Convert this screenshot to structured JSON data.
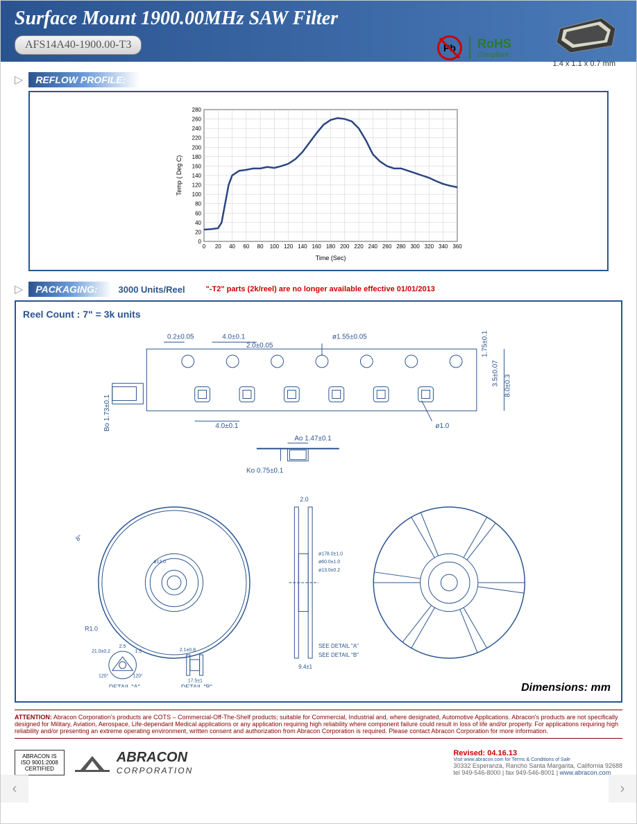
{
  "header": {
    "title": "Surface Mount 1900.00MHz  SAW Filter",
    "part_number": "AFS14A40-1900.00-T3",
    "dimensions": "1.4 x 1.1 x 0.7 mm"
  },
  "compliance": {
    "pb_label": "Pb",
    "rohs_title": "RoHS",
    "rohs_sub": "Compliant"
  },
  "reflow": {
    "section_title": "REFLOW PROFILE:",
    "chart": {
      "type": "line",
      "xlabel": "Time (Sec)",
      "ylabel": "Temp ( Deg C)",
      "xlim": [
        0,
        360
      ],
      "ylim": [
        0,
        280
      ],
      "xtick_step": 20,
      "ytick_step": 20,
      "xticks": [
        0,
        20,
        40,
        60,
        80,
        100,
        120,
        140,
        160,
        180,
        200,
        220,
        240,
        260,
        280,
        300,
        320,
        340,
        360
      ],
      "yticks": [
        0,
        20,
        40,
        60,
        80,
        100,
        120,
        140,
        160,
        180,
        200,
        220,
        240,
        260,
        280
      ],
      "line_color": "#2a4580",
      "line_width": 2.5,
      "grid_color": "#cccccc",
      "background_color": "#ffffff",
      "border_color": "#000000",
      "label_fontsize": 9,
      "tick_fontsize": 8,
      "data": [
        [
          0,
          25
        ],
        [
          10,
          26
        ],
        [
          20,
          28
        ],
        [
          25,
          40
        ],
        [
          30,
          80
        ],
        [
          35,
          120
        ],
        [
          40,
          140
        ],
        [
          50,
          150
        ],
        [
          60,
          152
        ],
        [
          70,
          155
        ],
        [
          80,
          155
        ],
        [
          90,
          158
        ],
        [
          100,
          156
        ],
        [
          110,
          160
        ],
        [
          120,
          165
        ],
        [
          130,
          175
        ],
        [
          140,
          190
        ],
        [
          150,
          210
        ],
        [
          160,
          230
        ],
        [
          170,
          248
        ],
        [
          180,
          258
        ],
        [
          190,
          262
        ],
        [
          200,
          260
        ],
        [
          210,
          255
        ],
        [
          220,
          240
        ],
        [
          230,
          215
        ],
        [
          240,
          185
        ],
        [
          250,
          170
        ],
        [
          260,
          160
        ],
        [
          270,
          155
        ],
        [
          280,
          155
        ],
        [
          290,
          150
        ],
        [
          300,
          145
        ],
        [
          310,
          140
        ],
        [
          320,
          135
        ],
        [
          330,
          128
        ],
        [
          340,
          122
        ],
        [
          350,
          118
        ],
        [
          360,
          115
        ]
      ]
    }
  },
  "packaging": {
    "section_title": "PACKAGING:",
    "units": "3000 Units/Reel",
    "note": "\"-T2\" parts (2k/reel) are no longer available effective 01/01/2013",
    "reel_count": "Reel Count : 7\" = 3k units",
    "dimensions_label": "Dimensions: mm",
    "tape": {
      "dims": {
        "pitch_top": "0.2±0.05",
        "hole_pitch": "4.0±0.1",
        "pocket_pitch": "2.0±0.05",
        "hole_dia": "ø1.55±0.05",
        "edge_dist": "1.75±0.1",
        "row_dist": "3.5±0.07",
        "width": "8.0±0.3",
        "pocket_width": "4.0±0.1",
        "pocket_corner": "ø1.0",
        "tape_thick": "Bo 1.73±0.1",
        "ao": "Ao 1.47±0.1",
        "ko": "Ko 0.75±0.1"
      }
    },
    "reel": {
      "detail_a": "DETAIL \"A\"",
      "detail_b": "DETAIL \"B\"",
      "see_a": "SEE DETAIL \"A\"",
      "see_b": "SEE DETAIL \"B\"",
      "edge": "2.0",
      "r": "R1.0",
      "outer_dia": "ø178.0±1.0",
      "inner_dia": "ø60.0±1.0",
      "hub_dia": "ø13.0±0.2",
      "slot_w": "9.4±1",
      "angles": [
        "120°",
        "120°"
      ],
      "thick1": "2.1±0.8",
      "thick2": "17.5±1",
      "slot": "1.5",
      "slot2": "2.5",
      "circ": "21.0±0.2"
    }
  },
  "attention": {
    "label": "ATTENTION:",
    "text": "Abracon Corporation's products are COTS – Commercial-Off-The-Shelf products; suitable for Commercial, Industrial and, where designated, Automotive Applications. Abracon's products are not specifically designed for Military, Aviation, Aerospace, Life-dependant Medical applications or any application requiring high reliability where component failure could result in loss of life and/or property. For applications requiring high reliability and/or presenting an extreme operating environment, written consent and authorization from Abracon Corporation is required. Please contact Abracon Corporation for more information."
  },
  "footer": {
    "cert": [
      "ABRACON IS",
      "ISO 9001:2008",
      "CERTIFIED"
    ],
    "company": "ABRACON",
    "company_sub": "CORPORATION",
    "visit": "Visit www.abracon.com for Terms & Conditions of Sale",
    "address": "30332 Esperanza, Rancho Santa Margarita, California 92688",
    "tel": "tel 949-546-8000",
    "fax": "fax 949-546-8001",
    "web": "www.abracon.com",
    "revised": "Revised: 04.16.13"
  }
}
